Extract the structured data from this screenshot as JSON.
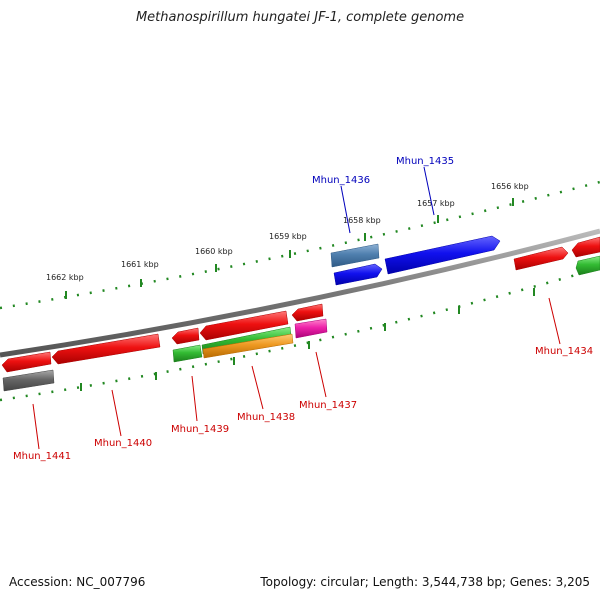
{
  "title": "Methanospirillum hungatei JF-1, complete genome",
  "footer": {
    "accession": "Accession: NC_007796",
    "summary": "Topology: circular; Length: 3,544,738 bp; Genes: 3,205"
  },
  "scale_labels": [
    "1662 kbp",
    "1661 kbp",
    "1660 kbp",
    "1659 kbp",
    "1658 kbp",
    "1657 kbp",
    "1656 kbp"
  ],
  "gene_labels": {
    "mhun_1436": "Mhun_1436",
    "mhun_1435": "Mhun_1435",
    "mhun_1434": "Mhun_1434",
    "mhun_1437": "Mhun_1437",
    "mhun_1438": "Mhun_1438",
    "mhun_1439": "Mhun_1439",
    "mhun_1440": "Mhun_1440",
    "mhun_1441": "Mhun_1441"
  },
  "colors": {
    "backbone": "#808080",
    "red": "#ee1111",
    "blue": "#1111ee",
    "steel_blue": "#4f7fae",
    "green": "#33bb33",
    "orange": "#ee9922",
    "magenta": "#ee22aa",
    "gray": "#666666",
    "tick": "#228822",
    "label_red": "#cc0000",
    "label_blue": "#0000bb"
  }
}
